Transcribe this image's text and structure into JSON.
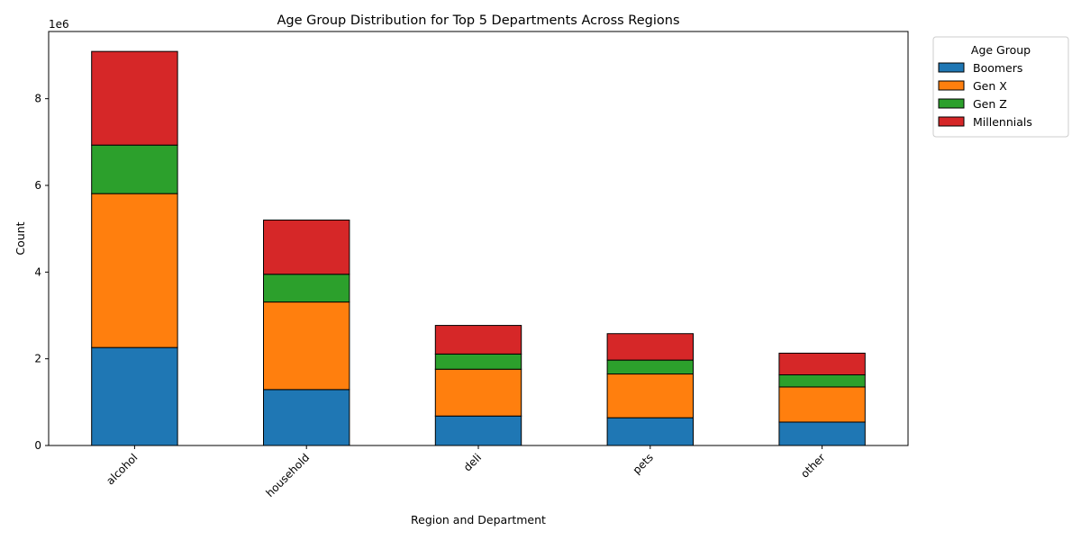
{
  "chart_data": {
    "type": "bar",
    "stacked": true,
    "title": "Age Group Distribution for Top 5 Departments Across Regions",
    "xlabel": "Region and Department",
    "ylabel": "Count",
    "y_scale_label": "1e6",
    "ylim": [
      0,
      9.55
    ],
    "yticks": [
      0,
      2,
      4,
      6,
      8
    ],
    "categories": [
      "alcohol",
      "household",
      "deli",
      "pets",
      "other"
    ],
    "series": [
      {
        "name": "Boomers",
        "color": "#1f77b4",
        "values": [
          2.26,
          1.29,
          0.68,
          0.64,
          0.54
        ]
      },
      {
        "name": "Gen X",
        "color": "#ff7f0e",
        "values": [
          3.55,
          2.02,
          1.08,
          1.01,
          0.81
        ]
      },
      {
        "name": "Gen Z",
        "color": "#2ca02c",
        "values": [
          1.12,
          0.64,
          0.35,
          0.32,
          0.28
        ]
      },
      {
        "name": "Millennials",
        "color": "#d62728",
        "values": [
          2.16,
          1.25,
          0.66,
          0.61,
          0.5
        ]
      }
    ],
    "legend": {
      "title": "Age Group",
      "placement": "outside-top-right"
    },
    "grid": false
  }
}
